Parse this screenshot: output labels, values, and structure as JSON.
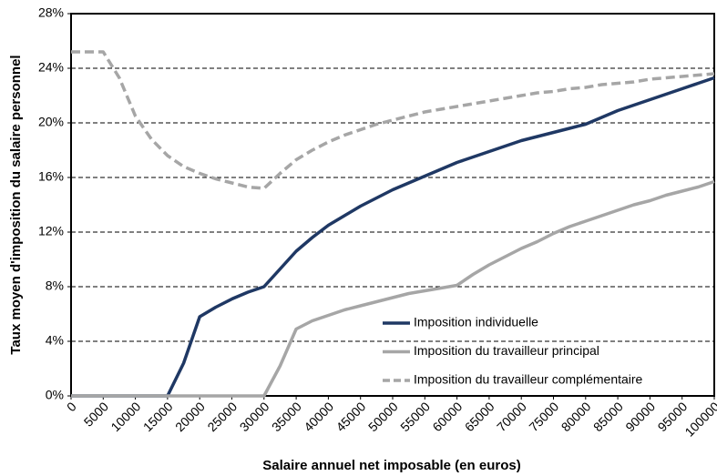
{
  "chart_data": {
    "type": "line",
    "x_label": "Salaire annuel net imposable (en euros)",
    "y_label": "Taux moyen d'imposition du salaire personnel",
    "x": [
      0,
      2500,
      5000,
      7500,
      10000,
      12500,
      15000,
      17500,
      20000,
      22500,
      25000,
      27500,
      30000,
      32500,
      35000,
      37500,
      40000,
      42500,
      45000,
      47500,
      50000,
      52500,
      55000,
      57500,
      60000,
      62500,
      65000,
      67500,
      70000,
      72500,
      75000,
      77500,
      80000,
      82500,
      85000,
      87500,
      90000,
      92500,
      95000,
      97500,
      100000
    ],
    "series": [
      {
        "name": "Imposition individuelle",
        "color": "#1f3864",
        "dashed": false,
        "values": [
          0,
          0,
          0,
          0,
          0,
          0,
          0,
          2.4,
          5.8,
          6.5,
          7.1,
          7.6,
          8.0,
          9.3,
          10.6,
          11.6,
          12.5,
          13.2,
          13.9,
          14.5,
          15.1,
          15.6,
          16.1,
          16.6,
          17.1,
          17.5,
          17.9,
          18.3,
          18.7,
          19.0,
          19.3,
          19.6,
          19.9,
          20.4,
          20.9,
          21.3,
          21.7,
          22.1,
          22.5,
          22.9,
          23.3
        ]
      },
      {
        "name": "Imposition du travailleur principal",
        "color": "#a6a6a6",
        "dashed": false,
        "values": [
          0,
          0,
          0,
          0,
          0,
          0,
          0,
          0,
          0,
          0,
          0,
          0,
          0,
          2.2,
          4.9,
          5.5,
          5.9,
          6.3,
          6.6,
          6.9,
          7.2,
          7.5,
          7.7,
          7.9,
          8.1,
          8.9,
          9.6,
          10.2,
          10.8,
          11.3,
          11.9,
          12.4,
          12.8,
          13.2,
          13.6,
          14.0,
          14.3,
          14.7,
          15.0,
          15.3,
          15.7
        ]
      },
      {
        "name": "Imposition du travailleur complémentaire",
        "color": "#a6a6a6",
        "dashed": true,
        "values": [
          25.2,
          25.2,
          25.2,
          23.3,
          20.5,
          18.8,
          17.6,
          16.8,
          16.3,
          15.9,
          15.6,
          15.3,
          15.2,
          16.3,
          17.3,
          18.0,
          18.6,
          19.1,
          19.5,
          19.9,
          20.2,
          20.5,
          20.8,
          21.0,
          21.2,
          21.4,
          21.6,
          21.8,
          22.0,
          22.2,
          22.3,
          22.5,
          22.6,
          22.8,
          22.9,
          23.0,
          23.2,
          23.3,
          23.4,
          23.5,
          23.6
        ]
      }
    ],
    "xlim": [
      0,
      100000
    ],
    "xticks": [
      0,
      5000,
      10000,
      15000,
      20000,
      25000,
      30000,
      35000,
      40000,
      45000,
      50000,
      55000,
      60000,
      65000,
      70000,
      75000,
      80000,
      85000,
      90000,
      95000,
      100000
    ],
    "ylim": [
      0,
      28
    ],
    "yticks": [
      {
        "value": 0,
        "label": "0%"
      },
      {
        "value": 4,
        "label": "4%"
      },
      {
        "value": 8,
        "label": "8%"
      },
      {
        "value": 12,
        "label": "12%"
      },
      {
        "value": 16,
        "label": "16%"
      },
      {
        "value": 20,
        "label": "20%"
      },
      {
        "value": 24,
        "label": "24%"
      },
      {
        "value": 28,
        "label": "28%"
      }
    ],
    "grid": true,
    "legend_position": "lower right"
  }
}
